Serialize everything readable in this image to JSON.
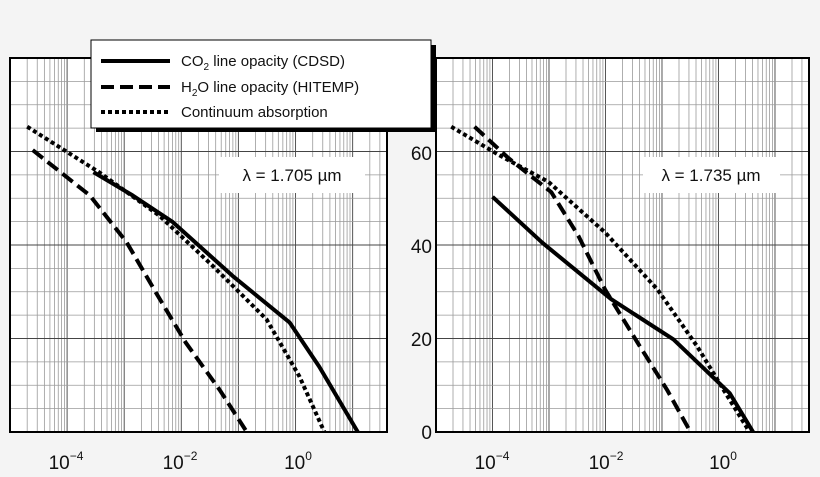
{
  "chart_data": [
    {
      "type": "line",
      "x_scale": "log",
      "xlim": [
        1e-05,
        40
      ],
      "ylim": [
        0,
        80
      ],
      "grid": true,
      "annotation": "λ = 1.705 µm",
      "x_tick_labels": [
        {
          "base": "10",
          "exp": "−4",
          "value": 0.0001
        },
        {
          "base": "10",
          "exp": "−2",
          "value": 0.01
        },
        {
          "base": "10",
          "exp": "0",
          "value": 1
        }
      ],
      "y_tick_labels": [],
      "series": [
        {
          "name": "CO2 line opacity (CDSD)",
          "style": "solid",
          "points": [
            [
              0.00029,
              55.6
            ],
            [
              0.0014,
              50.6
            ],
            [
              0.0071,
              44.9
            ],
            [
              0.079,
              33.4
            ],
            [
              0.79,
              23.4
            ],
            [
              2.6,
              14.0
            ],
            [
              12.3,
              0
            ]
          ]
        },
        {
          "name": "H2O line opacity (HITEMP)",
          "style": "dashed",
          "points": [
            [
              2.5e-05,
              60.3
            ],
            [
              0.00025,
              50.6
            ],
            [
              0.0011,
              40.6
            ],
            [
              0.0036,
              29.8
            ],
            [
              0.012,
              19.1
            ],
            [
              0.047,
              9.0
            ],
            [
              0.14,
              0
            ]
          ]
        },
        {
          "name": "Continuum absorption",
          "style": "dotted",
          "points": [
            [
              2e-05,
              65.3
            ],
            [
              0.00036,
              55.6
            ],
            [
              0.0041,
              46.3
            ],
            [
              0.035,
              35.6
            ],
            [
              0.31,
              24.1
            ],
            [
              1.17,
              11.9
            ],
            [
              3.2,
              0
            ]
          ]
        }
      ]
    },
    {
      "type": "line",
      "x_scale": "log",
      "xlim": [
        1e-05,
        40
      ],
      "ylim": [
        0,
        80
      ],
      "grid": true,
      "annotation": "λ = 1.735 µm",
      "x_tick_labels": [
        {
          "base": "10",
          "exp": "−4",
          "value": 0.0001
        },
        {
          "base": "10",
          "exp": "−2",
          "value": 0.01
        },
        {
          "base": "10",
          "exp": "0",
          "value": 1
        }
      ],
      "y_tick_labels": [
        {
          "label": "0",
          "value": 0
        },
        {
          "label": "20",
          "value": 20
        },
        {
          "label": "40",
          "value": 40
        },
        {
          "label": "60",
          "value": 60
        }
      ],
      "series": [
        {
          "name": "CO2 line opacity (CDSD)",
          "style": "solid",
          "points": [
            [
              0.0001,
              50.3
            ],
            [
              0.00076,
              40.5
            ],
            [
              0.0126,
              28.4
            ],
            [
              0.16,
              19.8
            ],
            [
              1.58,
              8.3
            ],
            [
              4.1,
              0
            ]
          ]
        },
        {
          "name": "H2O line opacity (HITEMP)",
          "style": "dashed",
          "points": [
            [
              4.8e-05,
              65.3
            ],
            [
              0.000195,
              58.5
            ],
            [
              0.0011,
              51.3
            ],
            [
              0.0033,
              42.0
            ],
            [
              0.0098,
              30.5
            ],
            [
              0.037,
              19.1
            ],
            [
              0.123,
              9.0
            ],
            [
              0.32,
              0
            ]
          ]
        },
        {
          "name": "Continuum absorption",
          "style": "dotted",
          "points": [
            [
              1.86e-05,
              65.3
            ],
            [
              0.000132,
              59.2
            ],
            [
              0.00098,
              53.5
            ],
            [
              0.0098,
              42.7
            ],
            [
              0.083,
              30.5
            ],
            [
              0.42,
              18.3
            ],
            [
              1.23,
              9.0
            ],
            [
              3.55,
              0
            ]
          ]
        }
      ]
    }
  ],
  "legend": {
    "placement": "top-center",
    "entries": [
      {
        "pre": "CO",
        "sub": "2",
        "post": " line opacity (CDSD)",
        "style": "solid"
      },
      {
        "pre": "H",
        "sub": "2",
        "post": "O line opacity (HITEMP)",
        "style": "dashed"
      },
      {
        "pre": "Continuum absorption",
        "sub": "",
        "post": "",
        "style": "dotted"
      }
    ]
  },
  "colors": {
    "line": "#000000",
    "grid": "#9a9a9a",
    "background": "#f4f4f4",
    "plot": "#ffffff"
  }
}
